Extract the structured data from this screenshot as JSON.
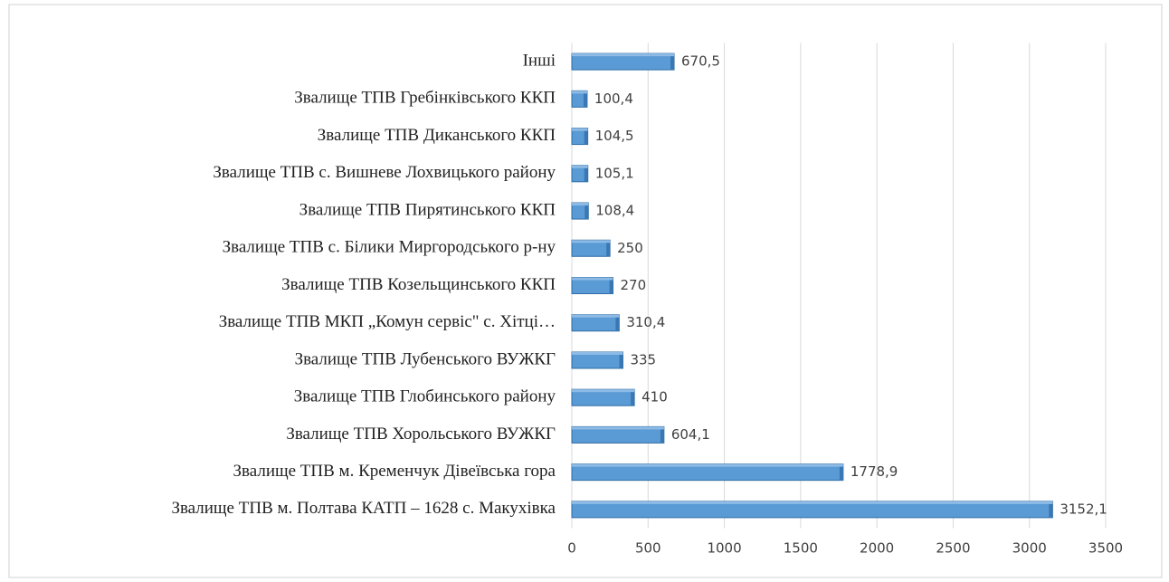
{
  "chart_data": {
    "type": "bar",
    "orientation": "horizontal",
    "categories": [
      "Інші",
      "Звалище ТПВ Гребінківського ККП",
      "Звалище ТПВ Диканського ККП",
      "Звалище ТПВ с. Вишневе Лохвицького району",
      "Звалище ТПВ Пирятинського ККП",
      "Звалище ТПВ с. Білики Миргородського р-ну",
      "Звалище ТПВ Козельщинського ККП",
      "Звалище ТПВ МКП „Комун сервіс\" с. Хітці…",
      "Звалище ТПВ Лубенського ВУЖКГ",
      "Звалище ТПВ Глобинського району",
      "Звалище ТПВ Хорольського ВУЖКГ",
      "Звалище ТПВ м. Кременчук Дівеївська гора",
      "Звалище ТПВ м. Полтава КАТП – 1628 с. Макухівка"
    ],
    "values": [
      670.5,
      100.4,
      104.5,
      105.1,
      108.4,
      250,
      270,
      310.4,
      335,
      410,
      604.1,
      1778.9,
      3152.1
    ],
    "value_labels": [
      "670,5",
      "100,4",
      "104,5",
      "105,1",
      "108,4",
      "250",
      "270",
      "310,4",
      "335",
      "410",
      "604,1",
      "1778,9",
      "3152,1"
    ],
    "color": "#5b9bd5",
    "xlim": [
      0,
      3500
    ],
    "xticks": [
      0,
      500,
      1000,
      1500,
      2000,
      2500,
      3000,
      3500
    ],
    "grid": true
  }
}
